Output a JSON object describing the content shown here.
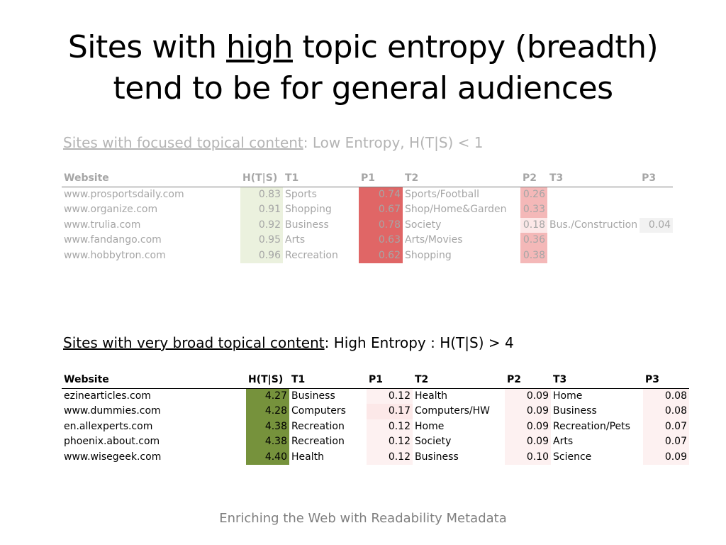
{
  "slide": {
    "title_line1_pre": "Sites with ",
    "title_line1_u": "high",
    "title_line1_post": " topic entropy (breadth)",
    "title_line2": "tend to be for general audiences",
    "footer": "Enriching the Web with Readability Metadata"
  },
  "section1": {
    "heading_u": "Sites with focused topical content",
    "heading_rest": ":   Low Entropy, H(T|S) < 1"
  },
  "section2": {
    "heading_u": "Sites with very broad topical content",
    "heading_rest": ":  High Entropy : H(T|S) > 4"
  },
  "table1": {
    "headers": [
      "Website",
      "H(T|S)",
      "T1",
      "P1",
      "T2",
      "P2",
      "T3",
      "P3"
    ],
    "rows": [
      {
        "site": "www.prosportsdaily.com",
        "h": "0.83",
        "t1": "Sports",
        "p1": "0.74",
        "t2": "Sports/Football",
        "p2": "0.26",
        "t3": "",
        "p3": ""
      },
      {
        "site": "www.organize.com",
        "h": "0.91",
        "t1": "Shopping",
        "p1": "0.67",
        "t2": "Shop/Home&Garden",
        "p2": "0.33",
        "t3": "",
        "p3": ""
      },
      {
        "site": "www.trulia.com",
        "h": "0.92",
        "t1": "Business",
        "p1": "0.78",
        "t2": "Society",
        "p2": "0.18",
        "t3": "Bus./Construction",
        "p3": "0.04"
      },
      {
        "site": "www.fandango.com",
        "h": "0.95",
        "t1": "Arts",
        "p1": "0.63",
        "t2": "Arts/Movies",
        "p2": "0.36",
        "t3": "",
        "p3": ""
      },
      {
        "site": "www.hobbytron.com",
        "h": "0.96",
        "t1": "Recreation",
        "p1": "0.62",
        "t2": "Shopping",
        "p2": "0.38",
        "t3": "",
        "p3": ""
      }
    ]
  },
  "table2": {
    "headers": [
      "Website",
      "H(T|S)",
      "T1",
      "P1",
      "T2",
      "P2",
      "T3",
      "P3"
    ],
    "rows": [
      {
        "site": "ezinearticles.com",
        "h": "4.27",
        "t1": "Business",
        "p1": "0.12",
        "t2": "Health",
        "p2": "0.09",
        "t3": "Home",
        "p3": "0.08"
      },
      {
        "site": "www.dummies.com",
        "h": "4.28",
        "t1": "Computers",
        "p1": "0.17",
        "t2": "Computers/HW",
        "p2": "0.09",
        "t3": "Business",
        "p3": "0.08"
      },
      {
        "site": "en.allexperts.com",
        "h": "4.38",
        "t1": "Recreation",
        "p1": "0.12",
        "t2": "Home",
        "p2": "0.09",
        "t3": "Recreation/Pets",
        "p3": "0.07"
      },
      {
        "site": "phoenix.about.com",
        "h": "4.38",
        "t1": "Recreation",
        "p1": "0.12",
        "t2": "Society",
        "p2": "0.09",
        "t3": "Arts",
        "p3": "0.07"
      },
      {
        "site": "www.wisegeek.com",
        "h": "4.40",
        "t1": "Health",
        "p1": "0.12",
        "t2": "Business",
        "p2": "0.10",
        "t3": "Science",
        "p3": "0.09"
      }
    ]
  },
  "colors": {
    "low_entropy_cell": "#ebf1de",
    "high_entropy_cell": "#76923c",
    "prob_high": "#e06666",
    "prob_mid": "#f4b8b8",
    "prob_low": "#fce8e8",
    "prob_faint": "#fdf1f1",
    "prob_neutral": "#f2f2f2"
  }
}
